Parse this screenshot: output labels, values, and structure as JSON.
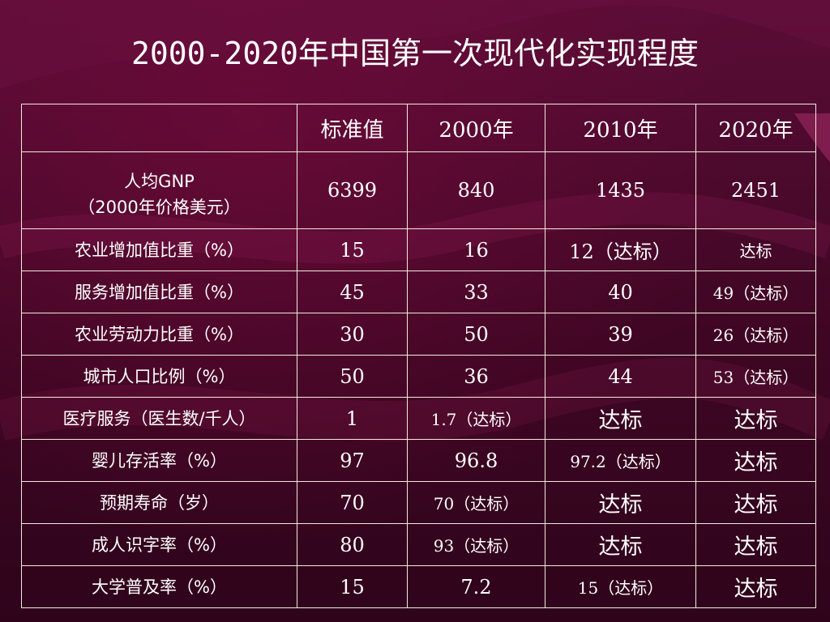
{
  "title": "2000-2020年中国第一次现代化实现程度",
  "table": {
    "headers": [
      "",
      "标准值",
      "2000年",
      "2010年",
      "2020年"
    ],
    "gnp_label_line1": "人均GNP",
    "gnp_label_line2": "（2000年价格美元）",
    "gnp_values": [
      "6399",
      "840",
      "1435",
      "2451"
    ],
    "rows": [
      {
        "label": "农业增加值比重（%）",
        "values": [
          "15",
          "16",
          "12（达标）",
          "达标"
        ]
      },
      {
        "label": "服务增加值比重（%）",
        "values": [
          "45",
          "33",
          "40",
          "49（达标）"
        ]
      },
      {
        "label": "农业劳动力比重（%）",
        "values": [
          "30",
          "50",
          "39",
          "26（达标）"
        ]
      },
      {
        "label": "城市人口比例（%）",
        "values": [
          "50",
          "36",
          "44",
          "53（达标）"
        ]
      },
      {
        "label": "医疗服务（医生数/千人）",
        "values": [
          "1",
          "1.7（达标）",
          "达标",
          "达标"
        ]
      },
      {
        "label": "婴儿存活率（%）",
        "values": [
          "97",
          "96.8",
          "97.2（达标）",
          "达标"
        ]
      },
      {
        "label": "预期寿命（岁）",
        "values": [
          "70",
          "70（达标）",
          "达标",
          "达标"
        ]
      },
      {
        "label": "成人识字率（%）",
        "values": [
          "80",
          "93（达标）",
          "达标",
          "达标"
        ]
      },
      {
        "label": "大学普及率（%）",
        "values": [
          "15",
          "7.2",
          "15（达标）",
          "达标"
        ]
      }
    ]
  },
  "colors": {
    "background": "#4a0a2a",
    "text": "#ffffff",
    "grid": "#f3eadf"
  }
}
